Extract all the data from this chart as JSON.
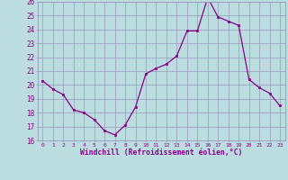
{
  "x": [
    0,
    1,
    2,
    3,
    4,
    5,
    6,
    7,
    8,
    9,
    10,
    11,
    12,
    13,
    14,
    15,
    16,
    17,
    18,
    19,
    20,
    21,
    22,
    23
  ],
  "y": [
    20.3,
    19.7,
    19.3,
    18.2,
    18.0,
    17.5,
    16.7,
    16.4,
    17.1,
    18.4,
    20.8,
    21.2,
    21.5,
    22.1,
    23.9,
    23.9,
    26.3,
    24.9,
    24.6,
    24.3,
    20.4,
    19.8,
    19.4,
    18.5
  ],
  "ylim": [
    16,
    26
  ],
  "xlim": [
    -0.5,
    23.5
  ],
  "yticks": [
    16,
    17,
    18,
    19,
    20,
    21,
    22,
    23,
    24,
    25,
    26
  ],
  "xticks": [
    0,
    1,
    2,
    3,
    4,
    5,
    6,
    7,
    8,
    9,
    10,
    11,
    12,
    13,
    14,
    15,
    16,
    17,
    18,
    19,
    20,
    21,
    22,
    23
  ],
  "xlabel": "Windchill (Refroidissement éolien,°C)",
  "line_color": "#880088",
  "marker_color": "#880088",
  "bg_color": "#bbdde0",
  "grid_color": "#9999bb",
  "xlabel_color": "#880088",
  "tick_color": "#880088",
  "spine_color": "#9999bb"
}
